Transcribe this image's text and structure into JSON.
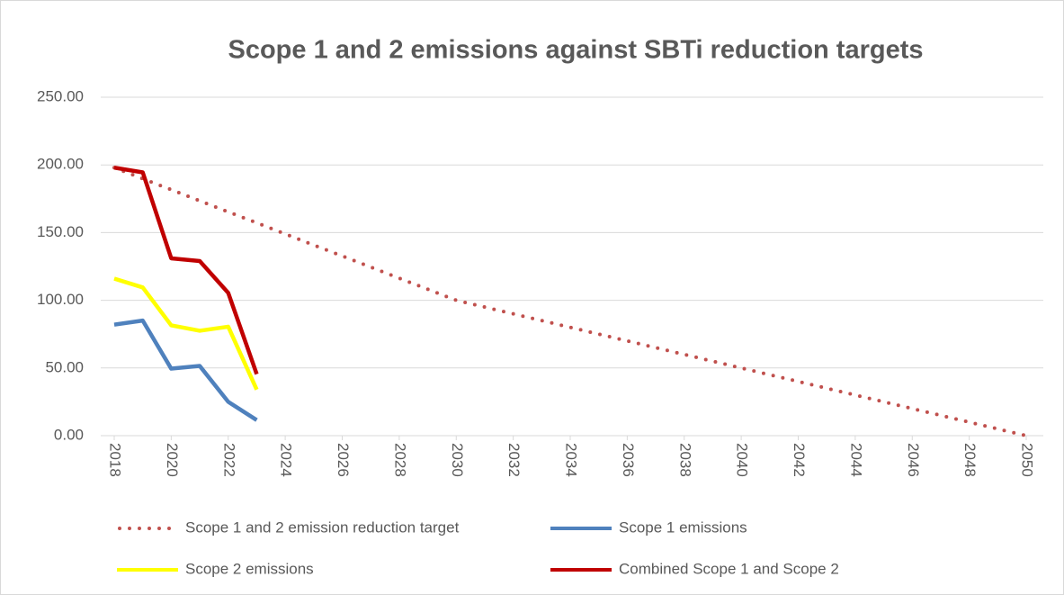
{
  "chart_data": {
    "type": "line",
    "title": "Scope 1 and 2 emissions against SBTi reduction targets",
    "x": [
      2018,
      2019,
      2020,
      2021,
      2022,
      2023,
      2024,
      2025,
      2026,
      2027,
      2028,
      2029,
      2030,
      2031,
      2032,
      2033,
      2034,
      2035,
      2036,
      2037,
      2038,
      2039,
      2040,
      2041,
      2042,
      2043,
      2044,
      2045,
      2046,
      2047,
      2048,
      2049,
      2050
    ],
    "xlim": [
      2018,
      2050
    ],
    "xticks": [
      2018,
      2020,
      2022,
      2024,
      2026,
      2028,
      2030,
      2032,
      2034,
      2036,
      2038,
      2040,
      2042,
      2044,
      2046,
      2048,
      2050
    ],
    "ylim": [
      0,
      250
    ],
    "yticks": [
      {
        "value": 0,
        "label": "0.00"
      },
      {
        "value": 50,
        "label": "50.00"
      },
      {
        "value": 100,
        "label": "100.00"
      },
      {
        "value": 150,
        "label": "150.00"
      },
      {
        "value": 200,
        "label": "200.00"
      },
      {
        "value": 250,
        "label": "250.00"
      }
    ],
    "grid": true,
    "legend": "bottom",
    "series": [
      {
        "name": "Scope 1 and 2 emission reduction target",
        "color": "#c0504d",
        "dash": "dotted",
        "values": [
          198,
          189.8,
          181.7,
          173.5,
          165.3,
          157.2,
          149,
          140.8,
          132.7,
          124.5,
          116.3,
          108.2,
          100,
          95,
          90,
          85,
          80,
          75,
          70,
          65,
          60,
          55,
          50,
          45,
          40,
          35,
          30,
          25,
          20,
          15,
          10,
          5,
          0
        ]
      },
      {
        "name": "Scope 1 emissions",
        "color": "#4f81bd",
        "values": [
          82,
          85,
          49.5,
          51.5,
          25,
          11.5,
          null,
          null,
          null,
          null,
          null,
          null,
          null,
          null,
          null,
          null,
          null,
          null,
          null,
          null,
          null,
          null,
          null,
          null,
          null,
          null,
          null,
          null,
          null,
          null,
          null,
          null,
          null
        ]
      },
      {
        "name": "Scope 2 emissions",
        "color": "#ffff00",
        "values": [
          116,
          109.5,
          81.5,
          77.5,
          80.5,
          34,
          null,
          null,
          null,
          null,
          null,
          null,
          null,
          null,
          null,
          null,
          null,
          null,
          null,
          null,
          null,
          null,
          null,
          null,
          null,
          null,
          null,
          null,
          null,
          null,
          null,
          null,
          null
        ]
      },
      {
        "name": "Combined Scope 1 and Scope 2",
        "color": "#c00000",
        "values": [
          198,
          194.5,
          131,
          129,
          105.5,
          45.5,
          null,
          null,
          null,
          null,
          null,
          null,
          null,
          null,
          null,
          null,
          null,
          null,
          null,
          null,
          null,
          null,
          null,
          null,
          null,
          null,
          null,
          null,
          null,
          null,
          null,
          null,
          null
        ]
      }
    ]
  }
}
